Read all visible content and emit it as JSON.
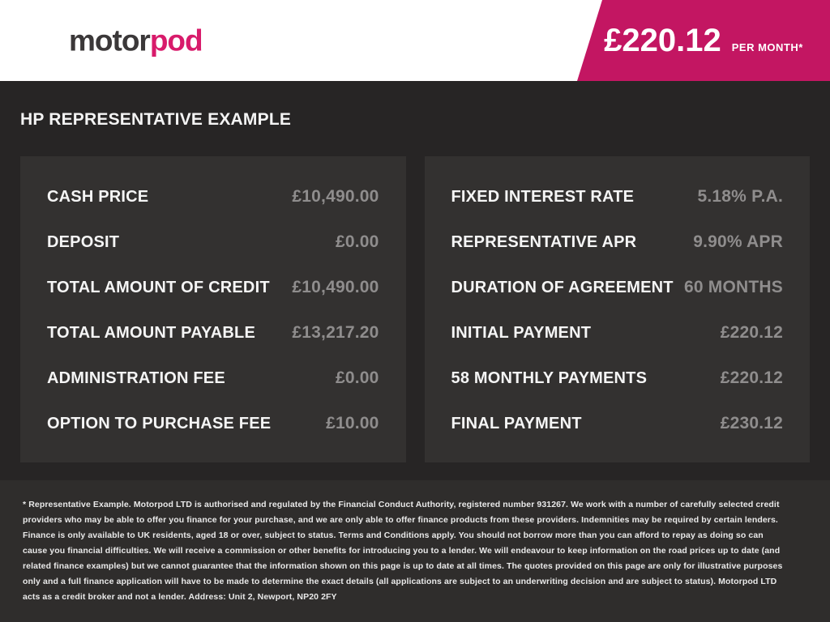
{
  "header": {
    "logo": {
      "part1": "motor",
      "part2": "pod"
    },
    "price_badge": {
      "amount": "£220.12",
      "period": "PER MONTH*"
    }
  },
  "main": {
    "title": "HP REPRESENTATIVE EXAMPLE",
    "panels": {
      "left": {
        "rows": [
          {
            "label": "CASH PRICE",
            "value": "£10,490.00"
          },
          {
            "label": "DEPOSIT",
            "value": "£0.00"
          },
          {
            "label": "TOTAL AMOUNT OF CREDIT",
            "value": "£10,490.00"
          },
          {
            "label": "TOTAL AMOUNT PAYABLE",
            "value": "£13,217.20"
          },
          {
            "label": "ADMINISTRATION FEE",
            "value": "£0.00"
          },
          {
            "label": "OPTION TO PURCHASE FEE",
            "value": "£10.00"
          }
        ]
      },
      "right": {
        "rows": [
          {
            "label": "FIXED INTEREST RATE",
            "value": "5.18% P.A."
          },
          {
            "label": "REPRESENTATIVE APR",
            "value": "9.90% APR"
          },
          {
            "label": "DURATION OF AGREEMENT",
            "value": "60 MONTHS"
          },
          {
            "label": "INITIAL PAYMENT",
            "value": "£220.12"
          },
          {
            "label": "58 MONTHLY PAYMENTS",
            "value": "£220.12"
          },
          {
            "label": "FINAL PAYMENT",
            "value": "£230.12"
          }
        ]
      }
    }
  },
  "footer": {
    "disclaimer": "* Representative Example. Motorpod LTD is authorised and regulated by the Financial Conduct Authority, registered number 931267. We work with a number of carefully selected credit providers who may be able to offer you finance for your purchase, and we are only able to offer finance products from these providers. Indemnities may be required by certain lenders. Finance is only available to UK residents, aged 18 or over, subject to status. Terms and Conditions apply. You should not borrow more than you can afford to repay as doing so can cause you financial difficulties. We will receive a commission or other benefits for introducing you to a lender. We will endeavour to keep information on the road prices up to date (and related finance examples) but we cannot guarantee that the information shown on this page is up to date at all times. The quotes provided on this page are only for illustrative purposes only and a full finance application will have to be made to determine the exact details (all applications are subject to an underwriting decision and are subject to status). Motorpod LTD acts as a credit broker and not a lender. Address: Unit 2, Newport, NP20 2FY"
  },
  "colors": {
    "accent_pink": "#c31662",
    "logo_pink": "#d81b6b",
    "logo_dark": "#3b3839",
    "header_bg": "#ffffff",
    "section_bg": "#272525",
    "panel_bg": "#333130",
    "footer_bg": "#2f2d2c",
    "label_text": "#f5f5f5",
    "value_text": "#8f8d8d"
  }
}
